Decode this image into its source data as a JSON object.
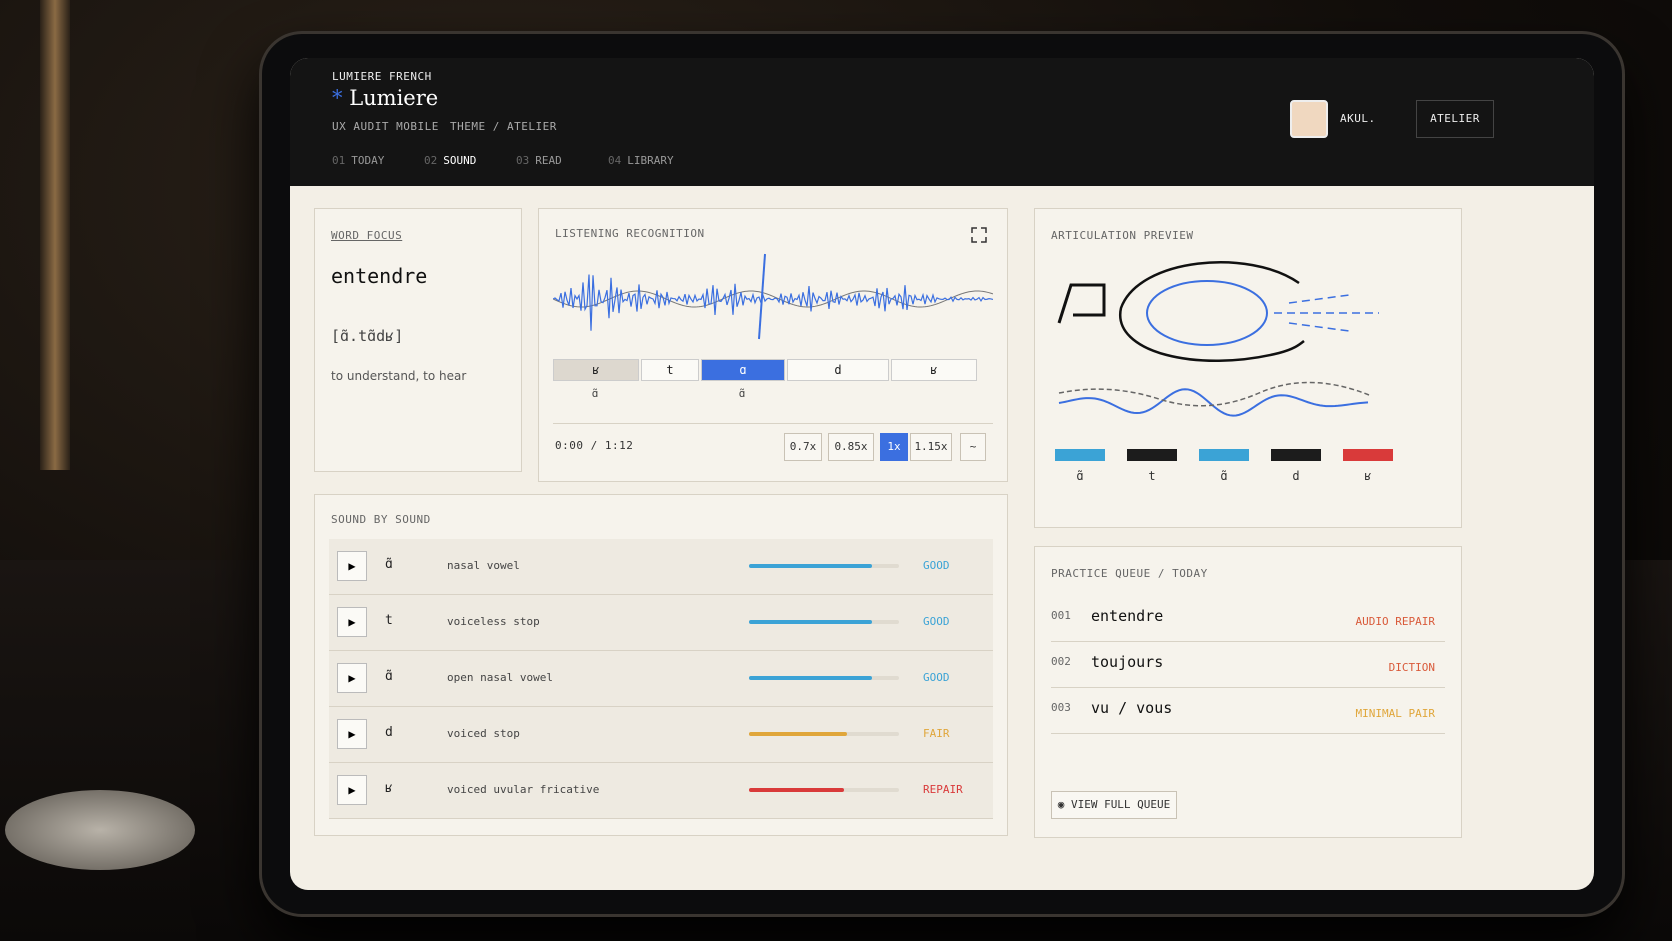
{
  "header": {
    "kicker": "LUMIERE FRENCH",
    "logo": "Lumiere",
    "subtitle": "UX AUDIT MOBILE",
    "theme": "THEME / ATELIER",
    "user": "AKUL.",
    "workspace": "ATELIER"
  },
  "tabs": [
    {
      "num": "01",
      "label": "TODAY"
    },
    {
      "num": "02",
      "label": "SOUND",
      "active": true
    },
    {
      "num": "03",
      "label": "READ"
    },
    {
      "num": "04",
      "label": "LIBRARY"
    }
  ],
  "word_focus": {
    "title": "WORD FOCUS",
    "word": "entendre",
    "ipa": "[ɑ̃.tɑ̃dʁ]",
    "gloss": "to understand, to hear"
  },
  "listening": {
    "title": "LISTENING RECOGNITION",
    "segments": [
      {
        "top": "ʁ",
        "bottom": "ɑ̃"
      },
      {
        "top": "t"
      },
      {
        "top": "ɑ",
        "bottom": "ɑ̃",
        "active": true
      },
      {
        "top": "d"
      },
      {
        "top": "ʁ"
      }
    ],
    "time": "0:00 / 1:12",
    "speeds": [
      {
        "label": "0.7x"
      },
      {
        "label": "0.85x"
      },
      {
        "label": "1x",
        "active": true
      },
      {
        "label": "1.15x"
      }
    ]
  },
  "articulation": {
    "title": "ARTICULATION PREVIEW",
    "phonemes": [
      {
        "symbol": "ɑ̃",
        "color": "#3ba3d6"
      },
      {
        "symbol": "t",
        "color": "#1c1c1c"
      },
      {
        "symbol": "ɑ̃",
        "color": "#3ba3d6"
      },
      {
        "symbol": "d",
        "color": "#1c1c1c"
      },
      {
        "symbol": "ʁ",
        "color": "#d93a3a"
      }
    ]
  },
  "sound_by_sound": {
    "title": "SOUND BY SOUND",
    "rows": [
      {
        "symbol": "ɑ̃",
        "desc": "nasal vowel",
        "score": 82,
        "status": "GOOD",
        "color": "#3ba3d6"
      },
      {
        "symbol": "t",
        "desc": "voiceless stop",
        "score": 82,
        "status": "GOOD",
        "color": "#3ba3d6"
      },
      {
        "symbol": "ɑ̃",
        "desc": "open nasal vowel",
        "score": 82,
        "status": "GOOD",
        "color": "#3ba3d6"
      },
      {
        "symbol": "d",
        "desc": "voiced stop",
        "score": 65,
        "status": "FAIR",
        "color": "#e0a63a"
      },
      {
        "symbol": "ʁ",
        "desc": "voiced uvular fricative",
        "score": 63,
        "status": "REPAIR",
        "color": "#d93a3a"
      }
    ]
  },
  "practice_queue": {
    "title": "PRACTICE QUEUE / TODAY",
    "items": [
      {
        "num": "001",
        "word": "entendre",
        "tag": "AUDIO REPAIR",
        "color": "#d95a3a"
      },
      {
        "num": "002",
        "word": "toujours",
        "tag": "DICTION",
        "color": "#d95a3a"
      },
      {
        "num": "003",
        "word": "vu / vous",
        "tag": "MINIMAL PAIR",
        "color": "#e0a63a"
      }
    ],
    "button": "VIEW FULL QUEUE"
  }
}
